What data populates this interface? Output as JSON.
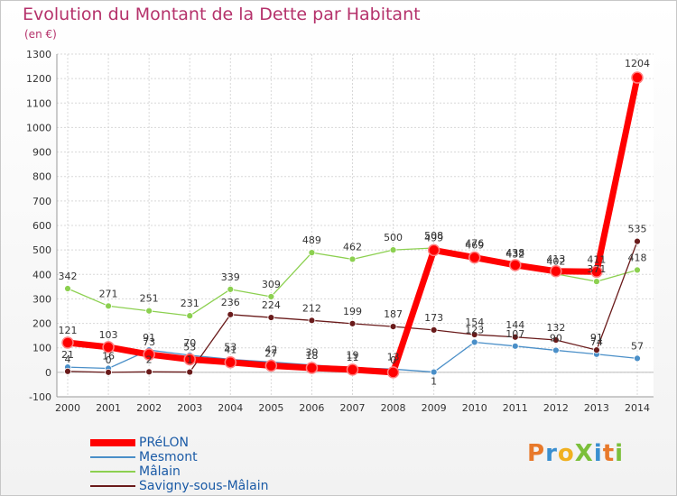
{
  "chart_data": {
    "type": "line",
    "title": "Evolution du Montant de la Dette par Habitant",
    "subtitle": "(en €)",
    "x": [
      "2000",
      "2001",
      "2002",
      "2003",
      "2004",
      "2005",
      "2006",
      "2007",
      "2008",
      "2009",
      "2010",
      "2011",
      "2012",
      "2013",
      "2014"
    ],
    "yticks": [
      -100,
      0,
      100,
      200,
      300,
      400,
      500,
      600,
      700,
      800,
      900,
      1000,
      1100,
      1200,
      1300
    ],
    "ylim": [
      -100,
      1300
    ],
    "grid": true,
    "series": [
      {
        "name": "PRéLON",
        "color": "#ff0000",
        "values": [
          121,
          103,
          73,
          53,
          41,
          27,
          18,
          11,
          0,
          499,
          469,
          438,
          413,
          411,
          1204
        ]
      },
      {
        "name": "Mesmont",
        "color": "#4a8fc8",
        "values": [
          21,
          16,
          91,
          70,
          53,
          42,
          30,
          19,
          13,
          1,
          123,
          107,
          90,
          74,
          57
        ]
      },
      {
        "name": "Mâlain",
        "color": "#8cd050",
        "values": [
          342,
          271,
          251,
          231,
          339,
          309,
          489,
          462,
          500,
          508,
          476,
          432,
          402,
          371,
          418
        ]
      },
      {
        "name": "Savigny-sous-Mâlain",
        "color": "#6a1b1b",
        "values": [
          4,
          0,
          2,
          1,
          236,
          224,
          212,
          199,
          187,
          173,
          154,
          144,
          132,
          91,
          535
        ]
      }
    ],
    "legend_position": "bottom-left"
  },
  "legend": [
    {
      "label": "PRéLON"
    },
    {
      "label": "Mesmont"
    },
    {
      "label": "Mâlain"
    },
    {
      "label": "Savigny-sous-Mâlain"
    }
  ],
  "logo": {
    "text": "ProXiti",
    "letters": [
      "P",
      "r",
      "o",
      "X",
      "i",
      "t",
      "i"
    ]
  }
}
